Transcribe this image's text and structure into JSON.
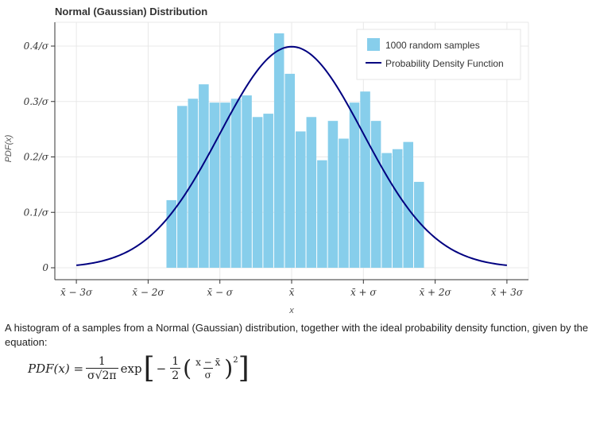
{
  "chart_data": {
    "type": "bar",
    "title": "Normal (Gaussian) Distribution",
    "xlabel": "x",
    "ylabel": "PDF(x)",
    "xlim": [
      -3.25,
      3.0
    ],
    "ylim": [
      0,
      0.42
    ],
    "x_ticks": [
      {
        "value": -3,
        "label": "x̄ − 3σ"
      },
      {
        "value": -2,
        "label": "x̄ − 2σ"
      },
      {
        "value": -1,
        "label": "x̄ − σ"
      },
      {
        "value": 0,
        "label": "x̄"
      },
      {
        "value": 1,
        "label": "x̄ + σ"
      },
      {
        "value": 2,
        "label": "x̄ + 2σ"
      },
      {
        "value": 3,
        "label": "x̄ + 3σ"
      }
    ],
    "y_ticks": [
      {
        "value": 0,
        "label": "0"
      },
      {
        "value": 0.1,
        "label": "0.1/σ"
      },
      {
        "value": 0.2,
        "label": "0.2/σ"
      },
      {
        "value": 0.3,
        "label": "0.3/σ"
      },
      {
        "value": 0.4,
        "label": "0.4/σ"
      }
    ],
    "grid": true,
    "legend_position": "top-right",
    "series": [
      {
        "name": "1000 random samples",
        "kind": "histogram",
        "color": "#87ceeb",
        "bin_start": -1.75,
        "bin_width": 0.15,
        "values": [
          0.122,
          0.292,
          0.305,
          0.331,
          0.298,
          0.298,
          0.305,
          0.311,
          0.272,
          0.278,
          0.423,
          0.35,
          0.246,
          0.272,
          0.194,
          0.265,
          0.233,
          0.298,
          0.318,
          0.265,
          0.207,
          0.214,
          0.227,
          0.155
        ]
      },
      {
        "name": "Probability Density Function",
        "kind": "line",
        "color": "#000080",
        "function": "standard normal pdf",
        "x_range": [
          -3,
          3
        ]
      }
    ]
  },
  "caption": {
    "text": "A histogram of a samples from a Normal (Gaussian) distribution, together with the ideal probability density function, given by the equation:"
  },
  "formula": {
    "lhs": "PDF(x) =",
    "frac1_num": "1",
    "frac1_den": "σ√2π",
    "exp": "exp",
    "neg": "−",
    "frac2_num": "1",
    "frac2_den": "2",
    "frac3_num": "x − x̄",
    "frac3_den": "σ",
    "power": "2"
  }
}
